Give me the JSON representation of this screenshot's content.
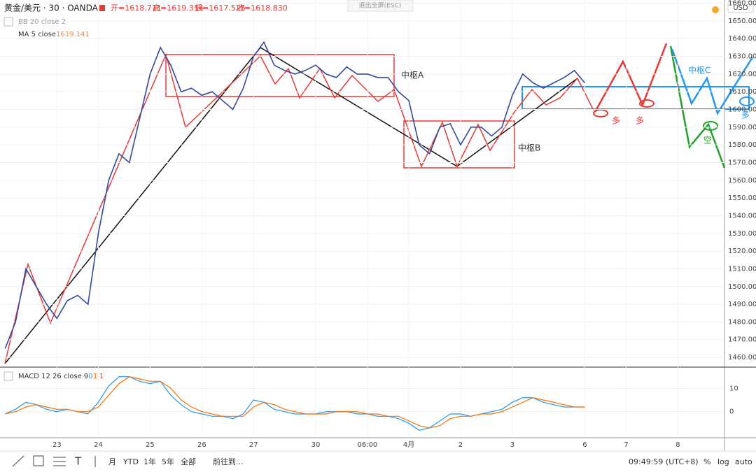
{
  "header": {
    "symbol": "黄金/美元 · 30 · OANDA",
    "open": "开=1618.711",
    "high": "高=1619.314",
    "low": "低=1617.525",
    "close": "收=1618.830",
    "exit": "退出全屏(ESC)",
    "currency": "USD"
  },
  "indicators": {
    "bb": "BB 20 close 2",
    "ma": "MA 5 close",
    "ma_value": "1619.141",
    "macd": "MACD 12 26 close 9",
    "macd_v1": "−0",
    "macd_v2": "1",
    "macd_v3": "1"
  },
  "annotations": {
    "zone_a": "中枢A",
    "zone_b": "中枢B",
    "zone_c": "中枢C",
    "long1": "多",
    "long2": "多",
    "long3": "多",
    "short": "空"
  },
  "toolbar": {
    "month": "月",
    "ytd": "YTD",
    "y1": "1年",
    "y5": "5年",
    "all": "全部",
    "goto": "前往到...",
    "time": "09:49:59 (UTC+8)",
    "pct": "%",
    "log": "log",
    "auto": "auto"
  },
  "chart_data": {
    "type": "line",
    "categories": [
      null,
      null,
      null,
      null,
      null,
      "23",
      null,
      null,
      null,
      "24",
      null,
      null,
      null,
      null,
      "25",
      null,
      null,
      null,
      null,
      "26",
      null,
      null,
      null,
      null,
      "27",
      null,
      null,
      null,
      null,
      null,
      "30",
      null,
      null,
      null,
      null,
      "06:00",
      null,
      null,
      null,
      "4月",
      null,
      null,
      null,
      null,
      "2",
      null,
      null,
      null,
      null,
      "3",
      null,
      null,
      null,
      null,
      null,
      null,
      "6",
      null,
      null,
      null,
      "7",
      null,
      null,
      null,
      null,
      "8",
      null,
      null,
      null,
      null
    ],
    "series": [
      {
        "name": "黄金/美元",
        "color": "#34489b",
        "values": [
          1465,
          1480,
          1510,
          1500,
          1490,
          1482,
          1492,
          1495,
          1490,
          1530,
          1560,
          1575,
          1570,
          1595,
          1620,
          1635,
          1625,
          1610,
          1612,
          1608,
          1610,
          1605,
          1600,
          1612,
          1630,
          1638,
          1625,
          1622,
          1620,
          1622,
          1625,
          1620,
          1618,
          1624,
          1620,
          1620,
          1618,
          1618,
          1610,
          1605,
          1580,
          1575,
          1590,
          1592,
          1580,
          1590,
          1590,
          1585,
          1590,
          1608,
          1620,
          1615,
          1612,
          1615,
          1618,
          1622,
          1615,
          null,
          null,
          null,
          null,
          null,
          null,
          null,
          null,
          null,
          null,
          null,
          null,
          null
        ]
      }
    ],
    "ylim": [
      1454.5,
      1661.8
    ],
    "yticks": [
      {
        "value": 1460,
        "label": "1460.000"
      },
      {
        "value": 1470,
        "label": "1470.000"
      },
      {
        "value": 1480,
        "label": "1480.000"
      },
      {
        "value": 1490,
        "label": "1490.000"
      },
      {
        "value": 1500,
        "label": "1500.000"
      },
      {
        "value": 1510,
        "label": "1510.000"
      },
      {
        "value": 1520,
        "label": "1520.000"
      },
      {
        "value": 1530,
        "label": "1530.000"
      },
      {
        "value": 1540,
        "label": "1540.000"
      },
      {
        "value": 1550,
        "label": "1550.000"
      },
      {
        "value": 1560,
        "label": "1560.000"
      },
      {
        "value": 1570,
        "label": "1570.000"
      },
      {
        "value": 1580,
        "label": "1580.000"
      },
      {
        "value": 1590,
        "label": "1590.000"
      },
      {
        "value": 1600,
        "label": "1600.000"
      },
      {
        "value": 1610,
        "label": "1610.000"
      },
      {
        "value": 1620,
        "label": "1620.000"
      },
      {
        "value": 1630,
        "label": "1630.000"
      },
      {
        "value": 1640,
        "label": "1640.000"
      },
      {
        "value": 1650,
        "label": "1650.000"
      },
      {
        "value": 1660,
        "label": "1660.000"
      }
    ],
    "macd": {
      "ylim": [
        -11.2,
        18.5
      ],
      "yticks": [
        10,
        0
      ],
      "series": [
        {
          "name": "MACD",
          "color": "#2196f3",
          "values": [
            -1,
            1,
            4,
            3,
            1,
            0,
            1,
            0,
            -1,
            4,
            11,
            15,
            15,
            13,
            12,
            13,
            7,
            3,
            0,
            -1,
            -2,
            -2,
            -3,
            -1,
            5,
            4,
            1,
            0,
            -1,
            -1,
            -1,
            0,
            0,
            0,
            -1,
            -1,
            -2,
            -2,
            -3,
            -5,
            -8,
            -7,
            -4,
            -1,
            -1,
            -2,
            -1,
            0,
            1,
            4,
            6,
            6,
            4,
            3,
            2,
            2,
            2,
            null,
            null,
            null,
            null,
            null,
            null,
            null,
            null,
            null,
            null,
            null,
            null,
            null
          ]
        },
        {
          "name": "Signal",
          "color": "#ff6d00",
          "values": [
            -1,
            0,
            2,
            3,
            2,
            1,
            1,
            0,
            0,
            2,
            7,
            12,
            15,
            14,
            13,
            13,
            10,
            5,
            2,
            0,
            -1,
            -2,
            -2,
            -2,
            2,
            4,
            3,
            1,
            0,
            -1,
            -1,
            -1,
            0,
            0,
            0,
            -1,
            -1,
            -2,
            -2,
            -4,
            -6,
            -7,
            -6,
            -3,
            -2,
            -2,
            -1,
            -1,
            0,
            2,
            4,
            6,
            5,
            4,
            3,
            2,
            2,
            null,
            null,
            null,
            null,
            null,
            null,
            null,
            null,
            null,
            null,
            null,
            null,
            null
          ]
        }
      ]
    }
  }
}
